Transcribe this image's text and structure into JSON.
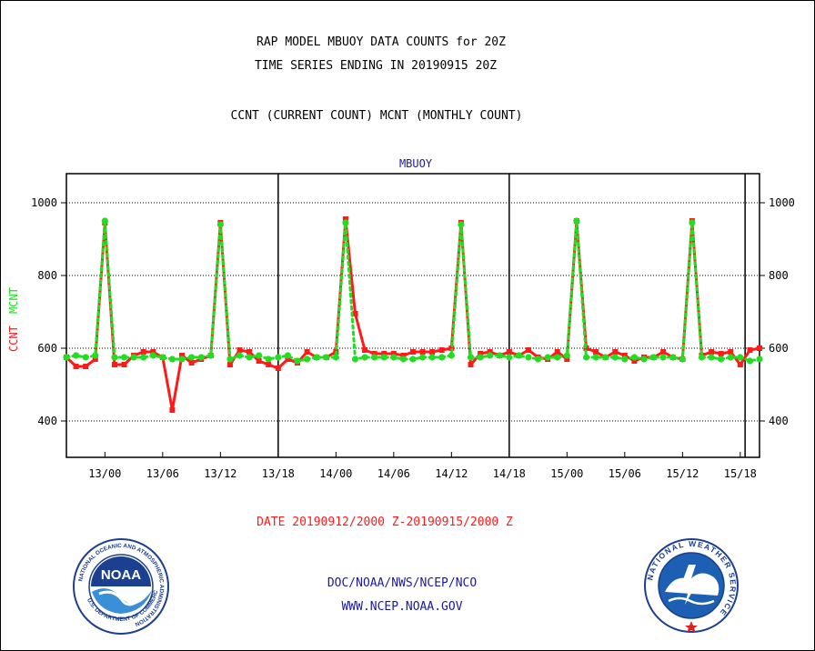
{
  "header": {
    "title_line1": "RAP MODEL MBUOY DATA COUNTS for 20Z",
    "title_line2": "TIME SERIES ENDING IN 20190915 20Z",
    "subtitle": "CCNT (CURRENT COUNT) MCNT (MONTHLY COUNT)"
  },
  "chart_title": "MBUOY",
  "ylabel_ccnt": "CCNT",
  "ylabel_mcnt": "MCNT",
  "date_range": "DATE 20190912/2000 Z-20190915/2000 Z",
  "footer": {
    "line1": "DOC/NOAA/NWS/NCEP/NCO",
    "line2": "WWW.NCEP.NOAA.GOV"
  },
  "logos": {
    "noaa": {
      "text": "NOAA",
      "ring": "NATIONAL OCEANIC AND ATMOSPHERIC ADMINISTRATION",
      "ring_bottom": "U.S. DEPARTMENT OF COMMERCE"
    },
    "nws": {
      "ring": "NATIONAL WEATHER SERVICE"
    }
  },
  "colors": {
    "ccnt": "#ff1a1a",
    "mcnt": "#22dd22",
    "title_blue": "#1a1aa0"
  },
  "chart_data": {
    "type": "line",
    "title": "MBUOY",
    "ylabel": "CCNT MCNT",
    "xlabel": "DATE 20190912/2000 Z-20190915/2000 Z",
    "xlim": [
      -4,
      68
    ],
    "ylim": [
      300,
      1080
    ],
    "yticks": [
      400,
      600,
      800,
      1000
    ],
    "xticks": [
      {
        "h": 0,
        "label": "13/00"
      },
      {
        "h": 6,
        "label": "13/06"
      },
      {
        "h": 12,
        "label": "13/12"
      },
      {
        "h": 18,
        "label": "13/18"
      },
      {
        "h": 24,
        "label": "14/00"
      },
      {
        "h": 30,
        "label": "14/06"
      },
      {
        "h": 36,
        "label": "14/12"
      },
      {
        "h": 42,
        "label": "14/18"
      },
      {
        "h": 48,
        "label": "15/00"
      },
      {
        "h": 54,
        "label": "15/06"
      },
      {
        "h": 60,
        "label": "15/12"
      },
      {
        "h": 66,
        "label": "15/18"
      }
    ],
    "day_boundaries": [
      18,
      42,
      66.5
    ],
    "grid": "horizontal dotted at y ticks",
    "x": [
      -4,
      -3,
      -2,
      -1,
      0,
      1,
      2,
      3,
      4,
      5,
      6,
      7,
      8,
      9,
      10,
      11,
      12,
      13,
      14,
      15,
      16,
      17,
      18,
      19,
      20,
      21,
      22,
      23,
      24,
      25,
      26,
      27,
      28,
      29,
      30,
      31,
      32,
      33,
      34,
      35,
      36,
      37,
      38,
      39,
      40,
      41,
      42,
      43,
      44,
      45,
      46,
      47,
      48,
      49,
      50,
      51,
      52,
      53,
      54,
      55,
      56,
      57,
      58,
      59,
      60,
      61,
      62,
      63,
      64,
      65,
      66,
      67,
      68
    ],
    "series": [
      {
        "name": "CCNT",
        "values": [
          575,
          550,
          550,
          570,
          945,
          555,
          555,
          580,
          590,
          590,
          575,
          430,
          580,
          560,
          570,
          580,
          945,
          555,
          595,
          590,
          565,
          555,
          545,
          570,
          560,
          590,
          575,
          575,
          590,
          955,
          695,
          595,
          585,
          585,
          585,
          580,
          590,
          590,
          590,
          595,
          600,
          945,
          555,
          585,
          590,
          580,
          590,
          580,
          595,
          575,
          570,
          590,
          570,
          950,
          600,
          590,
          575,
          590,
          580,
          565,
          575,
          575,
          590,
          575,
          570,
          950,
          580,
          590,
          585,
          590,
          555,
          595,
          600
        ]
      },
      {
        "name": "MCNT",
        "values": [
          575,
          580,
          575,
          580,
          950,
          575,
          575,
          575,
          575,
          580,
          575,
          570,
          570,
          575,
          575,
          580,
          940,
          570,
          580,
          575,
          580,
          570,
          575,
          580,
          565,
          570,
          575,
          575,
          575,
          945,
          570,
          575,
          575,
          575,
          575,
          570,
          570,
          575,
          575,
          575,
          580,
          940,
          575,
          575,
          580,
          580,
          575,
          580,
          575,
          570,
          575,
          575,
          580,
          950,
          575,
          575,
          575,
          575,
          570,
          575,
          570,
          575,
          575,
          575,
          570,
          945,
          575,
          575,
          570,
          575,
          575,
          565,
          570
        ]
      }
    ]
  }
}
